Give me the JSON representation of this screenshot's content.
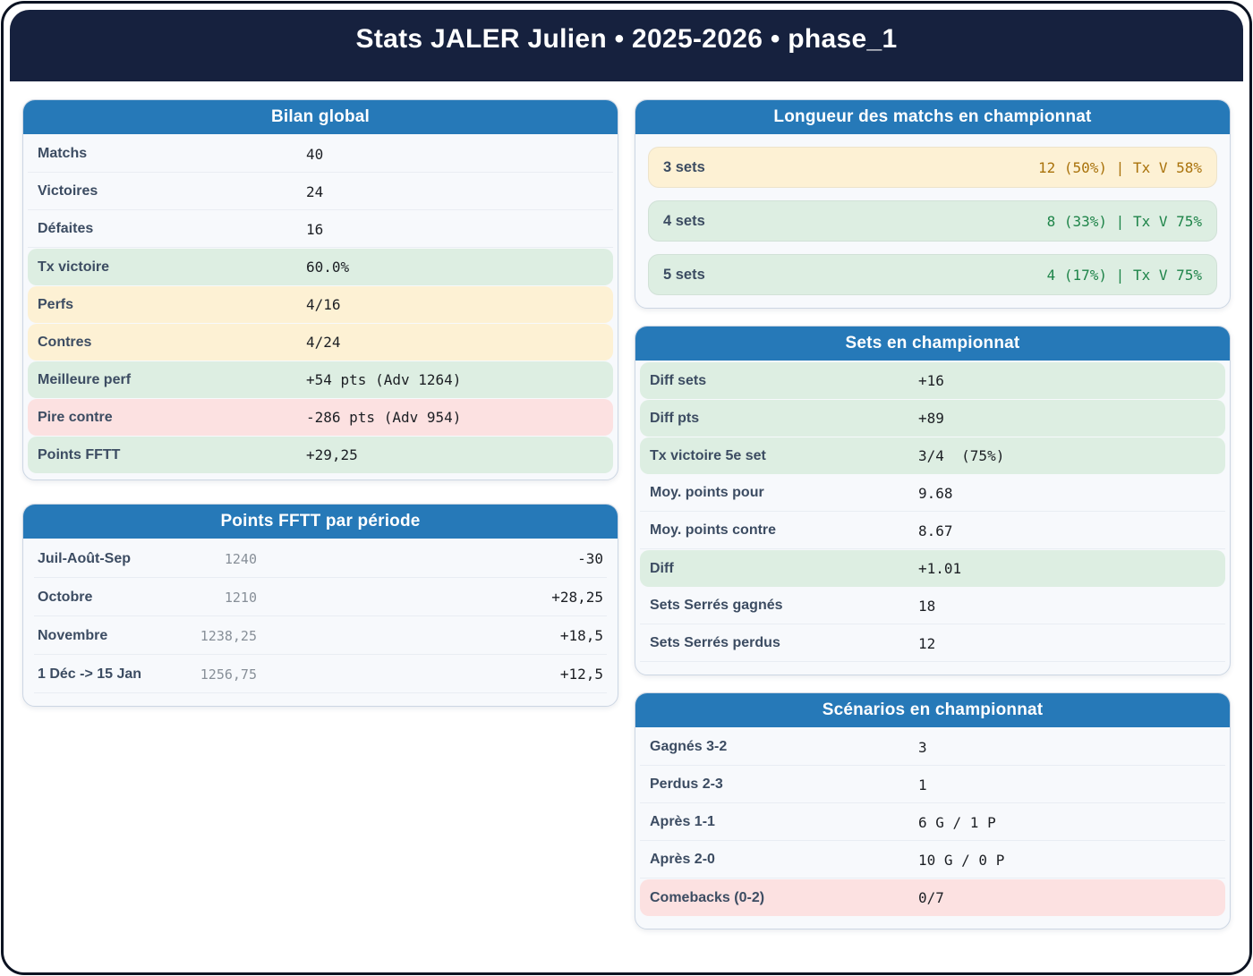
{
  "title": "Stats JALER Julien • 2025-2026 • phase_1",
  "colors": {
    "header_navy": "#16213e",
    "card_header_blue": "#2679b8",
    "highlight_green": "#ddeee2",
    "highlight_cream": "#fdf1d4",
    "highlight_pink": "#fce1e1",
    "text_amber": "#a9720b",
    "text_green": "#1e8449"
  },
  "cards": {
    "bilan": {
      "title": "Bilan global",
      "rows": [
        {
          "label": "Matchs",
          "value": "40",
          "variant": "plain"
        },
        {
          "label": "Victoires",
          "value": "24",
          "variant": "plain"
        },
        {
          "label": "Défaites",
          "value": "16",
          "variant": "plain"
        },
        {
          "label": "Tx victoire",
          "value": "60.0%",
          "variant": "green"
        },
        {
          "label": "Perfs",
          "value": "4/16",
          "variant": "cream"
        },
        {
          "label": "Contres",
          "value": "4/24",
          "variant": "cream"
        },
        {
          "label": "Meilleure perf",
          "value": "+54 pts (Adv 1264)",
          "variant": "green"
        },
        {
          "label": "Pire contre",
          "value": "-286 pts (Adv 954)",
          "variant": "pink"
        },
        {
          "label": "Points FFTT",
          "value": "+29,25",
          "variant": "green"
        }
      ]
    },
    "periods": {
      "title": "Points FFTT par période",
      "rows": [
        {
          "label": "Juil-Août-Sep",
          "points": "1240",
          "delta": "-30"
        },
        {
          "label": "Octobre",
          "points": "1210",
          "delta": "+28,25"
        },
        {
          "label": "Novembre",
          "points": "1238,25",
          "delta": "+18,5"
        },
        {
          "label": "1 Déc -> 15 Jan",
          "points": "1256,75",
          "delta": "+12,5"
        }
      ]
    },
    "longueur": {
      "title": "Longueur des matchs en championnat",
      "rows": [
        {
          "label": "3 sets",
          "value": "12 (50%) | Tx V 58%",
          "variant": "cream"
        },
        {
          "label": "4 sets",
          "value": "8 (33%) | Tx V 75%",
          "variant": "green"
        },
        {
          "label": "5 sets",
          "value": "4 (17%) | Tx V 75%",
          "variant": "green"
        }
      ]
    },
    "sets": {
      "title": "Sets en championnat",
      "rows": [
        {
          "label": "Diff sets",
          "value": "+16",
          "variant": "green"
        },
        {
          "label": "Diff pts",
          "value": "+89",
          "variant": "green"
        },
        {
          "label": "Tx victoire 5e set",
          "value": "3/4  (75%)",
          "variant": "green"
        },
        {
          "label": "Moy. points pour",
          "value": "9.68",
          "variant": "plain"
        },
        {
          "label": "Moy. points contre",
          "value": "8.67",
          "variant": "plain"
        },
        {
          "label": "Diff",
          "value": "+1.01",
          "variant": "green"
        },
        {
          "label": "Sets Serrés gagnés",
          "value": "18",
          "variant": "plain"
        },
        {
          "label": "Sets Serrés perdus",
          "value": "12",
          "variant": "plain"
        }
      ]
    },
    "scenarios": {
      "title": "Scénarios en championnat",
      "rows": [
        {
          "label": "Gagnés 3-2",
          "value": "3",
          "variant": "plain"
        },
        {
          "label": "Perdus 2-3",
          "value": "1",
          "variant": "plain"
        },
        {
          "label": "Après 1-1",
          "value": "6 G / 1 P",
          "variant": "plain"
        },
        {
          "label": "Après 2-0",
          "value": "10 G / 0 P",
          "variant": "plain"
        },
        {
          "label": "Comebacks (0-2)",
          "value": "0/7",
          "variant": "pink"
        }
      ]
    }
  }
}
